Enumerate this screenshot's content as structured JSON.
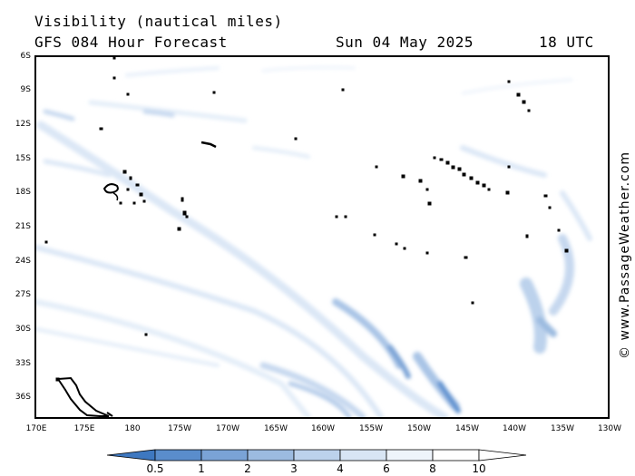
{
  "header": {
    "title": "Visibility (nautical miles)",
    "forecast": "GFS 084 Hour Forecast",
    "date": "Sun 04 May 2025",
    "time": "18 UTC"
  },
  "credit": "© www.PassageWeather.com",
  "map": {
    "lat_labels": [
      "6S",
      "9S",
      "12S",
      "15S",
      "18S",
      "21S",
      "24S",
      "27S",
      "30S",
      "33S",
      "36S"
    ],
    "lon_labels": [
      "170E",
      "175E",
      "180",
      "175W",
      "170W",
      "165W",
      "160W",
      "155W",
      "150W",
      "145W",
      "140W",
      "135W",
      "130W"
    ]
  },
  "colorbar": {
    "labels": [
      "0.5",
      "1",
      "2",
      "3",
      "4",
      "6",
      "8",
      "10"
    ],
    "colors": [
      "#3e78c0",
      "#5a8dcc",
      "#7aa3d6",
      "#9cbbe0",
      "#bcd2ec",
      "#d8e5f4",
      "#eef4fb",
      "#ffffff"
    ]
  },
  "colors": {
    "fog_light": "#dbe7f6",
    "fog_mid": "#a9c4e6",
    "fog_dark": "#5f92d0",
    "land": "#000000"
  }
}
